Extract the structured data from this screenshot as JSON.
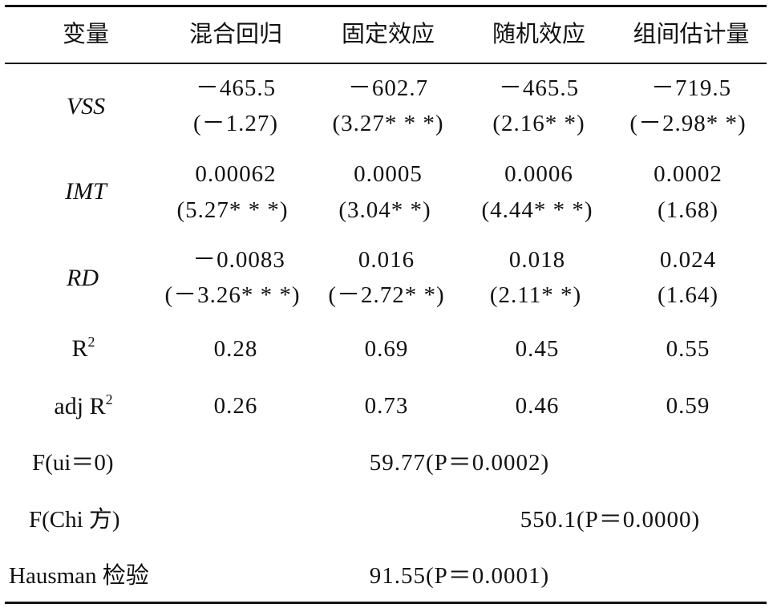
{
  "table": {
    "headers": [
      "变量",
      "混合回归",
      "固定效应",
      "随机效应",
      "组间估计量"
    ],
    "rows": [
      {
        "label": "VSS",
        "coef": [
          "－465.5",
          "－602.7",
          "－465.5",
          "－719.5"
        ],
        "stat": [
          "(－1.27)",
          "(3.27* * *)",
          "(2.16* *)",
          "(－2.98* *)"
        ]
      },
      {
        "label": "IMT",
        "coef": [
          "0.00062",
          "0.0005",
          "0.0006",
          "0.0002"
        ],
        "stat": [
          "(5.27* * *)",
          "(3.04* *)",
          "(4.44* * *)",
          "(1.68)"
        ]
      },
      {
        "label": "RD",
        "coef": [
          "－0.0083",
          "0.016",
          "0.018",
          "0.024"
        ],
        "stat": [
          "(－3.26* * *)",
          "(－2.72* *)",
          "(2.11* *)",
          "(1.64)"
        ]
      }
    ],
    "r2": {
      "label": "R",
      "sup": "2",
      "values": [
        "0.28",
        "0.69",
        "0.45",
        "0.55"
      ]
    },
    "adj_r2": {
      "label": "adj R",
      "sup": "2",
      "values": [
        "0.26",
        "0.73",
        "0.46",
        "0.59"
      ]
    },
    "tests": [
      {
        "label": "F(ui＝0)",
        "value": "59.77(P＝0.0002)"
      },
      {
        "label": "F(Chi 方)",
        "value": "550.1(P＝0.0000)"
      },
      {
        "label": "Hausman 检验",
        "value": "91.55(P＝0.0001)"
      }
    ]
  }
}
